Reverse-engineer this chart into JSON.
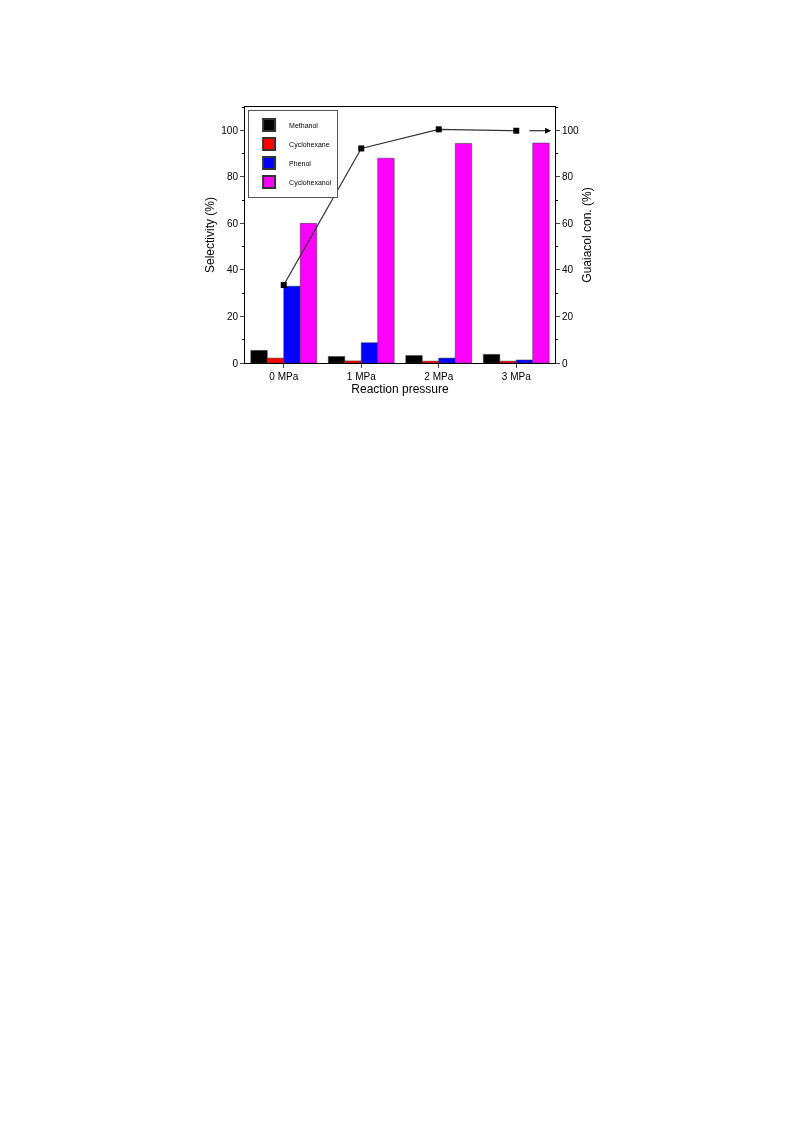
{
  "chart_data": {
    "type": "bar",
    "xlabel": "Reaction pressure",
    "ylabel": "Selectivity (%)",
    "y2label": "Guaiacol con. (%)",
    "categories": [
      "0 MPa",
      "1 MPa",
      "2 MPa",
      "3 MPa"
    ],
    "series": [
      {
        "name": "Methanol",
        "color": "#000000",
        "values": [
          5.4,
          2.8,
          3.2,
          3.7
        ]
      },
      {
        "name": "Cyclohexane",
        "color": "#ff0000",
        "values": [
          2.1,
          0.9,
          0.8,
          0.8
        ]
      },
      {
        "name": "Phenol",
        "color": "#0000ff",
        "values": [
          33,
          8.7,
          2.1,
          1.3
        ]
      },
      {
        "name": "Cyclohexanol",
        "color": "#ff00ff",
        "values": [
          60,
          88,
          94.3,
          94.5
        ]
      },
      {
        "type": "line",
        "axis": "y2",
        "color": "#333333",
        "marker": "square",
        "values": [
          33.5,
          92.2,
          100.4,
          99.8
        ]
      }
    ],
    "ylim": [
      0,
      110
    ],
    "yticks": [
      0,
      20,
      40,
      60,
      80,
      100
    ],
    "y2lim": [
      0,
      110
    ],
    "y2ticks": [
      0,
      20,
      40,
      60,
      80,
      100
    ],
    "legend": "top left"
  }
}
